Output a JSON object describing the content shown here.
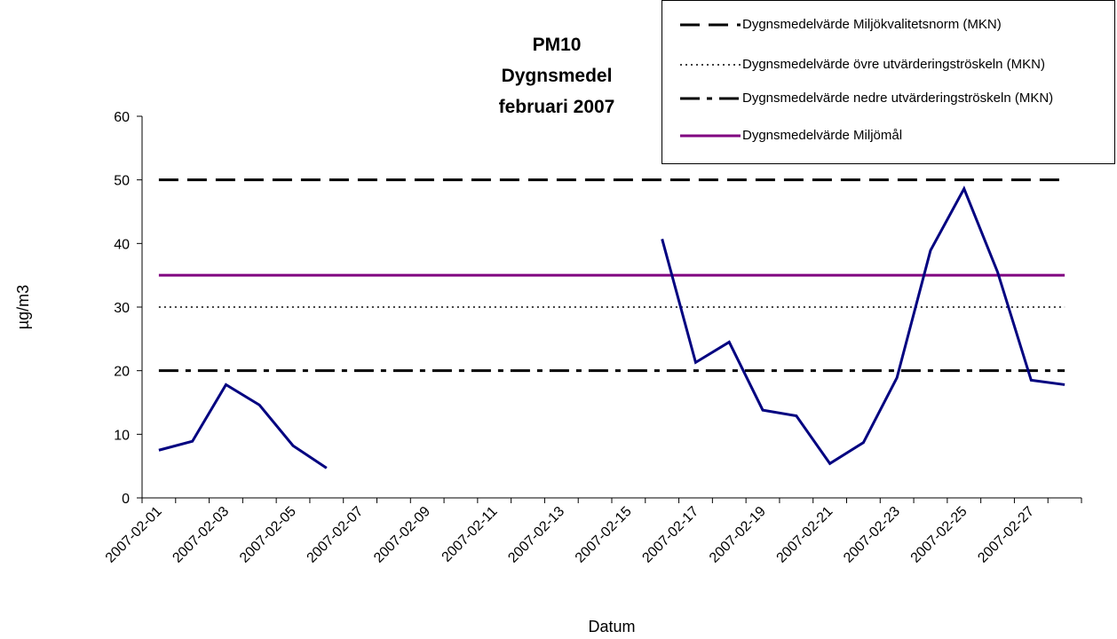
{
  "chart_data": {
    "type": "line",
    "title": [
      "PM10",
      "Dygnsmedel",
      "februari 2007"
    ],
    "x_label": "Datum",
    "y_label": "µg/m3",
    "categories": [
      "2007-02-01",
      null,
      "2007-02-03",
      null,
      "2007-02-05",
      null,
      "2007-02-07",
      null,
      "2007-02-09",
      null,
      "2007-02-11",
      null,
      "2007-02-13",
      null,
      "2007-02-15",
      null,
      "2007-02-17",
      null,
      "2007-02-19",
      null,
      "2007-02-21",
      null,
      "2007-02-23",
      null,
      "2007-02-25",
      null,
      "2007-02-27",
      null
    ],
    "ylim": [
      0,
      60
    ],
    "yticks": [
      0,
      10,
      20,
      30,
      40,
      50,
      60
    ],
    "series": [
      {
        "color": "#000080",
        "style": "solid",
        "values": [
          7.5,
          8.9,
          17.8,
          14.6,
          8.2,
          4.7,
          null,
          null,
          null,
          null,
          null,
          null,
          null,
          null,
          null,
          40.7,
          21.3,
          24.5,
          13.8,
          12.9,
          5.4,
          8.7,
          18.9,
          38.9,
          48.6,
          35.5,
          18.5,
          17.8
        ]
      },
      {
        "name": "Dygnsmedelvärde Miljökvalitetsnorm (MKN)",
        "color": "#000000",
        "style": "dashed",
        "values": [
          50,
          50,
          50,
          50,
          50,
          50,
          50,
          50,
          50,
          50,
          50,
          50,
          50,
          50,
          50,
          50,
          50,
          50,
          50,
          50,
          50,
          50,
          50,
          50,
          50,
          50,
          50,
          50
        ]
      },
      {
        "name": "Dygnsmedelvärde övre utvärderingströskeln (MKN)",
        "color": "#000000",
        "style": "dotted",
        "values": [
          30,
          30,
          30,
          30,
          30,
          30,
          30,
          30,
          30,
          30,
          30,
          30,
          30,
          30,
          30,
          30,
          30,
          30,
          30,
          30,
          30,
          30,
          30,
          30,
          30,
          30,
          30,
          30
        ]
      },
      {
        "name": "Dygnsmedelvärde nedre utvärderingströskeln (MKN)",
        "color": "#000000",
        "style": "dashdot",
        "values": [
          20,
          20,
          20,
          20,
          20,
          20,
          20,
          20,
          20,
          20,
          20,
          20,
          20,
          20,
          20,
          20,
          20,
          20,
          20,
          20,
          20,
          20,
          20,
          20,
          20,
          20,
          20,
          20
        ]
      },
      {
        "name": "Dygnsmedelvärde Miljömål",
        "color": "#800080",
        "style": "solid",
        "values": [
          35,
          35,
          35,
          35,
          35,
          35,
          35,
          35,
          35,
          35,
          35,
          35,
          35,
          35,
          35,
          35,
          35,
          35,
          35,
          35,
          35,
          35,
          35,
          35,
          35,
          35,
          35,
          35
        ]
      }
    ]
  }
}
